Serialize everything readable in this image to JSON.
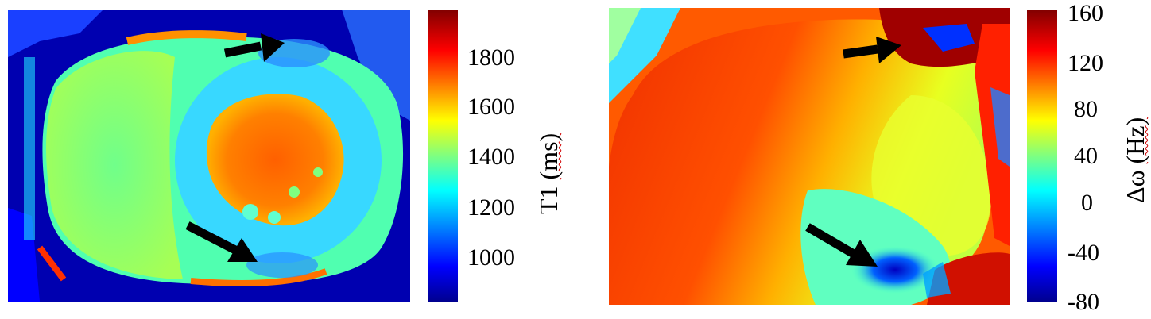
{
  "left_panel": {
    "colorbar": {
      "label_main": "T1 ",
      "label_unit": "(ms)",
      "ticks": [
        "1800",
        "1600",
        "1400",
        "1200",
        "1000"
      ],
      "colormap": "jet"
    },
    "arrows": [
      "arrow-upper",
      "arrow-lower"
    ]
  },
  "right_panel": {
    "colorbar": {
      "label_main": "Δω ",
      "label_unit": "(Hz)",
      "ticks": [
        "160",
        "120",
        "80",
        "40",
        "0",
        "-40",
        "-80"
      ],
      "colormap": "jet"
    },
    "arrows": [
      "arrow-upper",
      "arrow-lower"
    ]
  },
  "colors": {
    "jet_dark_blue": "#00008f",
    "jet_blue": "#0000ff",
    "jet_cyan": "#00ffff",
    "jet_yellow": "#ffff00",
    "jet_red": "#ff0000",
    "jet_dark_red": "#800000",
    "arrow": "#000000"
  }
}
